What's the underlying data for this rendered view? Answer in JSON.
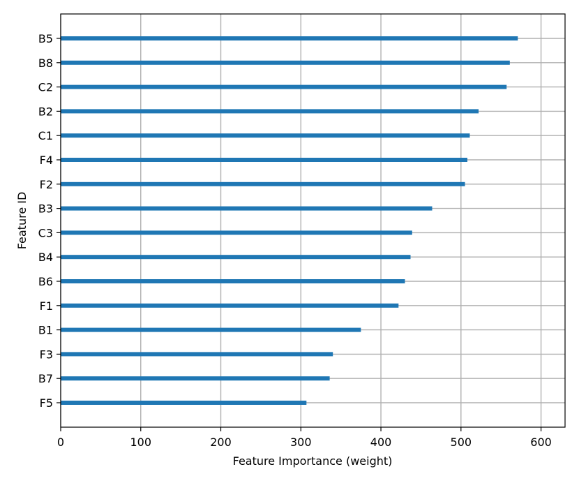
{
  "chart_data": {
    "type": "bar",
    "orientation": "horizontal",
    "title": "",
    "xlabel": "Feature Importance (weight)",
    "ylabel": "Feature ID",
    "xlim": [
      0,
      630
    ],
    "x_ticks": [
      0,
      100,
      200,
      300,
      400,
      500,
      600
    ],
    "grid": true,
    "bar_color": "#1f77b4",
    "categories": [
      "B5",
      "B8",
      "C2",
      "B2",
      "C1",
      "F4",
      "F2",
      "B3",
      "C3",
      "B4",
      "B6",
      "F1",
      "B1",
      "F3",
      "B7",
      "F5"
    ],
    "values": [
      571,
      561,
      557,
      522,
      511,
      508,
      505,
      464,
      439,
      437,
      430,
      422,
      375,
      340,
      336,
      307
    ]
  }
}
